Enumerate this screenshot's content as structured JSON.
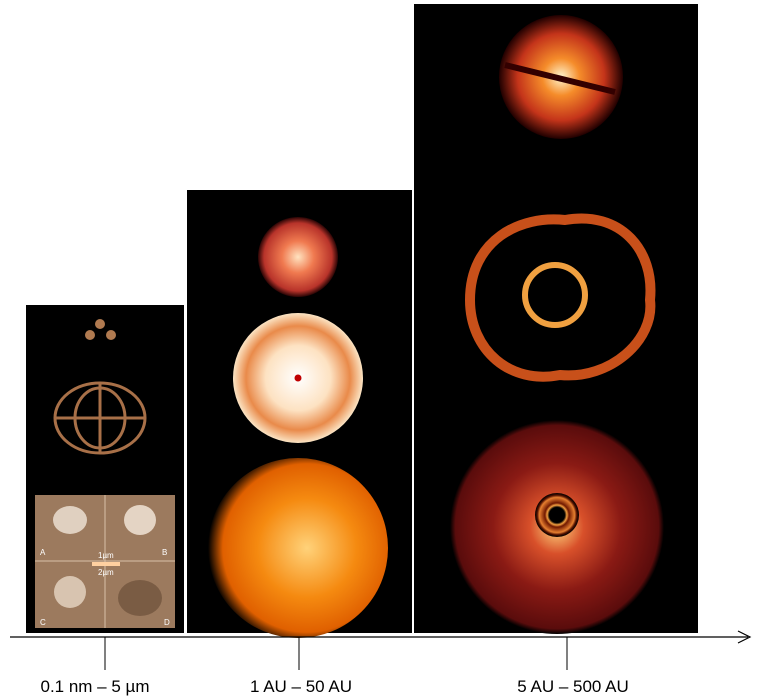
{
  "panels": [
    {
      "scale_label": "0.1 nm – 5 µm",
      "sem_labels": [
        "A",
        "B",
        "C",
        "D"
      ],
      "scale_bars": [
        "1µm",
        "2µm"
      ]
    },
    {
      "scale_label": "1 AU – 50 AU"
    },
    {
      "scale_label": "5 AU – 500 AU"
    }
  ]
}
